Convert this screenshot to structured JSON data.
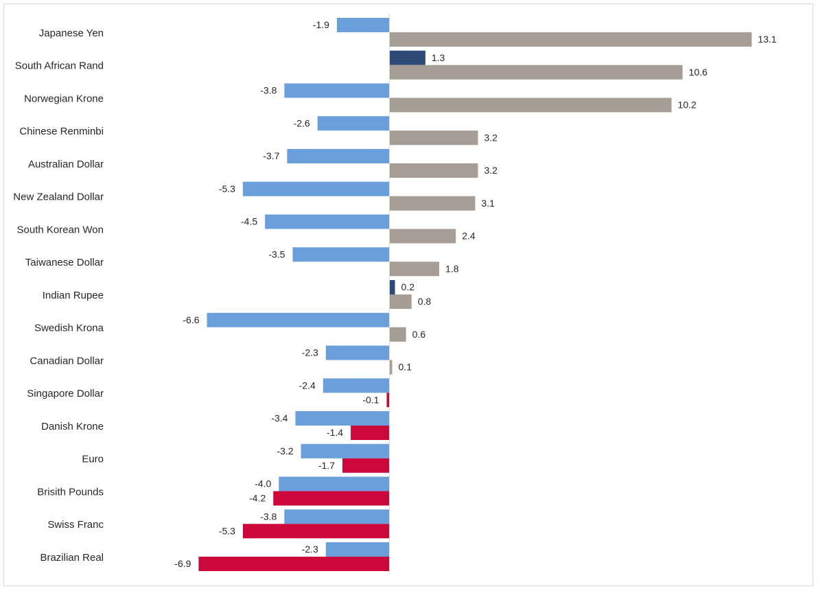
{
  "chart_data": {
    "type": "bar",
    "orientation": "horizontal",
    "categories": [
      "Japanese Yen",
      "South African Rand",
      "Norwegian Krone",
      "Chinese Renminbi",
      "Australian Dollar",
      "New Zealand Dollar",
      "South Korean Won",
      "Taiwanese Dollar",
      "Indian Rupee",
      "Swedish Krona",
      "Canadian Dollar",
      "Singapore Dollar",
      "Danish Krone",
      "Euro",
      "Brisith Pounds",
      "Swiss Franc",
      "Brazilian Real"
    ],
    "series": [
      {
        "values": [
          -1.9,
          1.3,
          -3.8,
          -2.6,
          -3.7,
          -5.3,
          -4.5,
          -3.5,
          0.2,
          -6.6,
          -2.3,
          -2.4,
          -3.4,
          -3.2,
          -4.0,
          -3.8,
          -2.3
        ],
        "color_negative": "#6a9fdb",
        "color_positive": "#2e4a77"
      },
      {
        "values": [
          13.1,
          10.6,
          10.2,
          3.2,
          3.2,
          3.1,
          2.4,
          1.8,
          0.8,
          0.6,
          0.1,
          -0.1,
          -1.4,
          -1.7,
          -4.2,
          -5.3,
          -6.9
        ],
        "color_positive": "#a69d94",
        "color_negative": "#cc073c"
      }
    ],
    "xlim": [
      -7.0,
      13.5
    ],
    "title": "",
    "xlabel": "",
    "ylabel": "",
    "grid": false,
    "legend": "none",
    "axis_line_color": "#d9d9d9"
  }
}
